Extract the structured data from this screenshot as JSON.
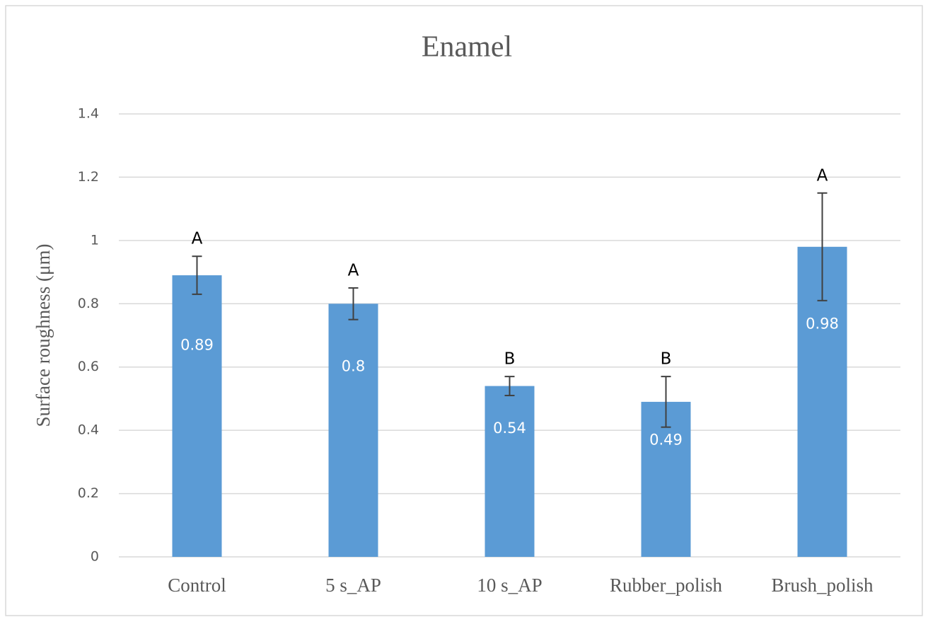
{
  "chart_data": {
    "type": "bar",
    "title": "Enamel",
    "y_label": "Surface roughness (μm)",
    "categories": [
      "Control",
      "5 s_AP",
      "10 s_AP",
      "Rubber_polish",
      "Brush_polish"
    ],
    "values": [
      0.89,
      0.8,
      0.54,
      0.49,
      0.98
    ],
    "errors": [
      0.06,
      0.05,
      0.03,
      0.08,
      0.17
    ],
    "group_labels": [
      "A",
      "A",
      "B",
      "B",
      "A"
    ],
    "color": "#5b9bd5",
    "ylim": [
      0,
      1.4
    ],
    "yticks": [
      0,
      0.2,
      0.4,
      0.6,
      0.8,
      1,
      1.2,
      1.4
    ],
    "grid": true
  }
}
